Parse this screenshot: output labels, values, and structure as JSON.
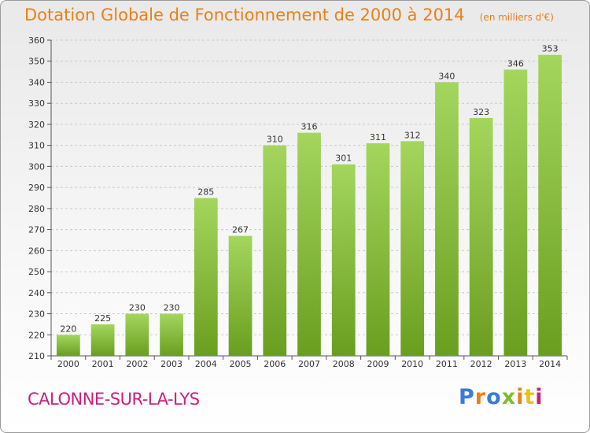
{
  "header": {
    "title": "Dotation Globale de Fonctionnement de 2000 à 2014",
    "unit_note": "(en milliers d'€)"
  },
  "footer": {
    "place": "CALONNE-SUR-LA-LYS",
    "brand": "Proxiti"
  },
  "colors": {
    "title": "#e8801a",
    "place": "#c8207e",
    "bar_light": "#a4d65e",
    "bar_dark": "#6a9e1f",
    "logo_letters": [
      "#3a7bd5",
      "#e8801a",
      "#3a7bd5",
      "#7cbf2a",
      "#e8801a",
      "#e8c21a",
      "#c8207e"
    ]
  },
  "chart_data": {
    "type": "bar",
    "title": "Dotation Globale de Fonctionnement de 2000 à 2014",
    "subtitle": "(en milliers d'€)",
    "xlabel": "",
    "ylabel": "",
    "categories": [
      "2000",
      "2001",
      "2002",
      "2003",
      "2004",
      "2005",
      "2006",
      "2007",
      "2008",
      "2009",
      "2010",
      "2011",
      "2012",
      "2013",
      "2014"
    ],
    "values": [
      220,
      225,
      230,
      230,
      285,
      267,
      310,
      316,
      301,
      311,
      312,
      340,
      323,
      346,
      353
    ],
    "ylim": [
      210,
      360
    ],
    "yticks": [
      210,
      220,
      230,
      240,
      250,
      260,
      270,
      280,
      290,
      300,
      310,
      320,
      330,
      340,
      350,
      360
    ],
    "grid": true,
    "legend": "none"
  }
}
